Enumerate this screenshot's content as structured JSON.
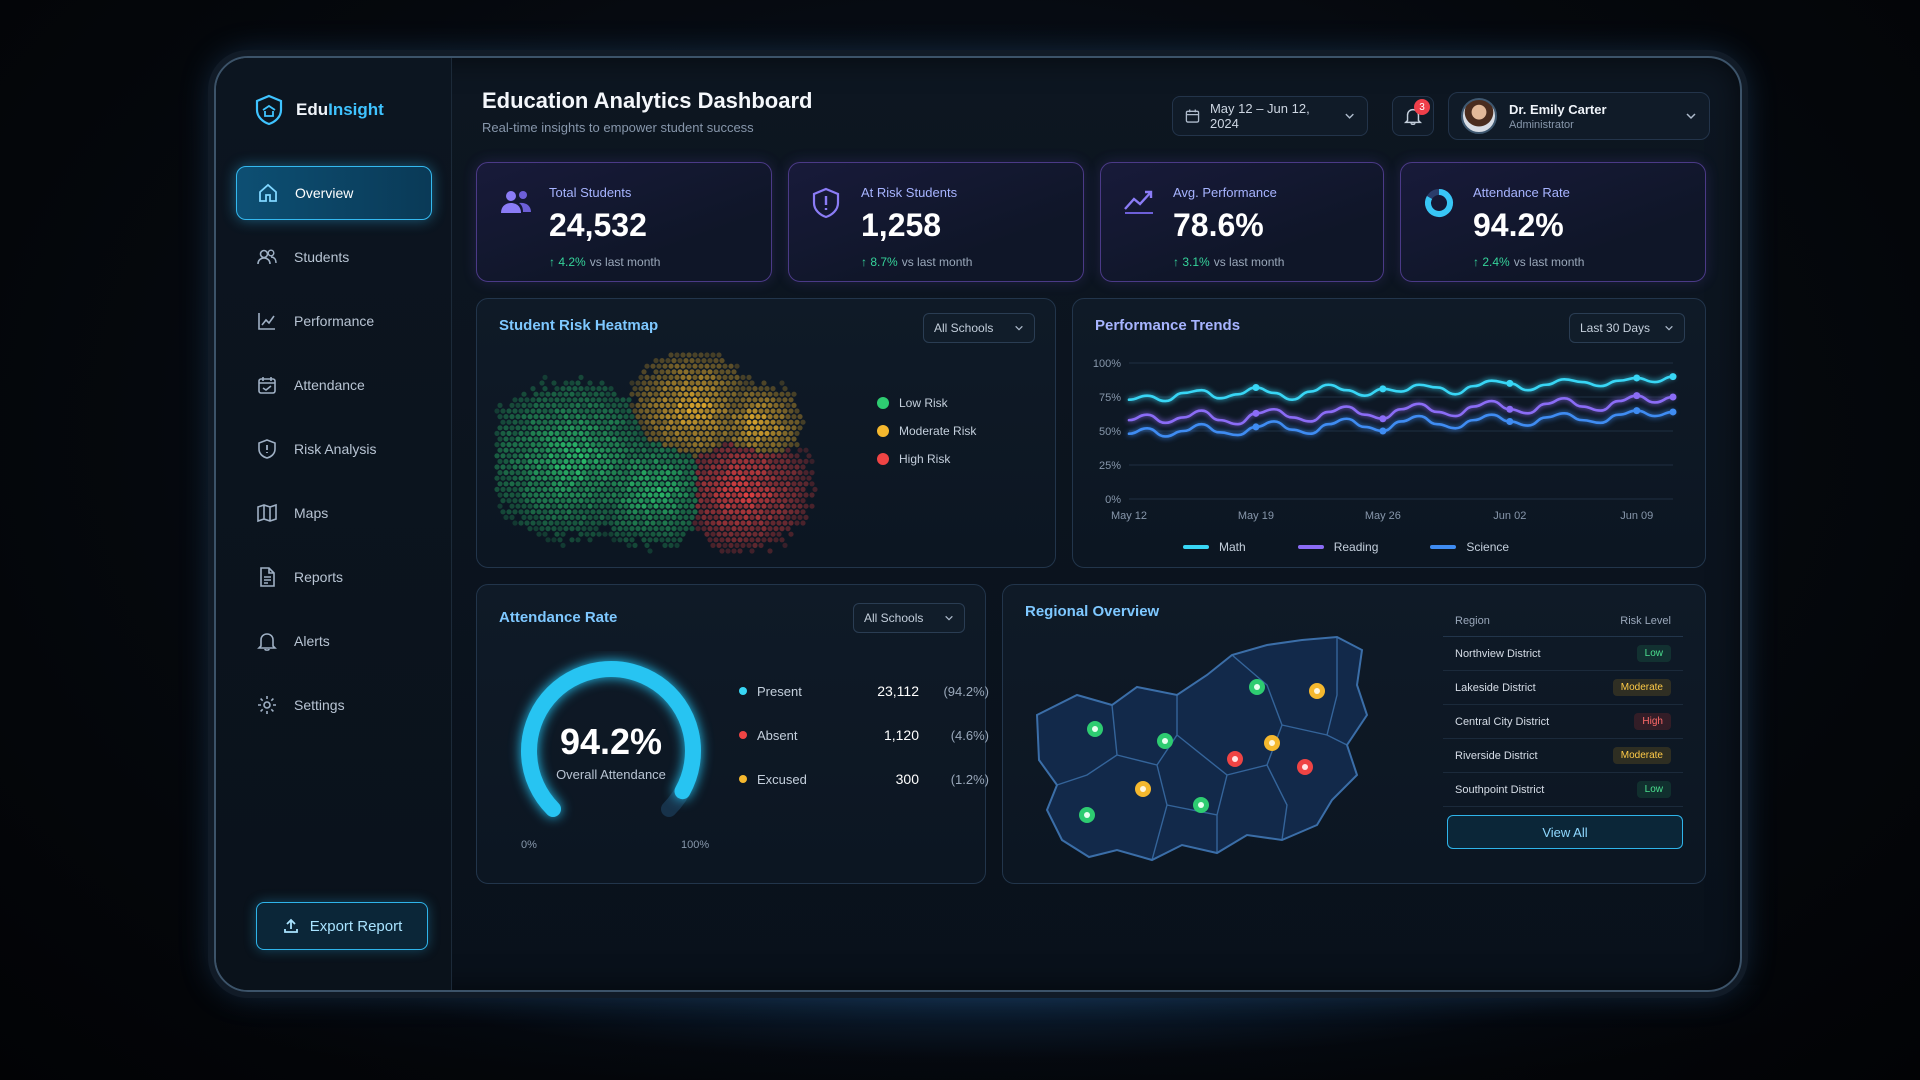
{
  "app": {
    "logo_prefix": "Edu",
    "logo_accent": "Insight"
  },
  "sidebar": {
    "items": [
      {
        "label": "Overview",
        "icon": "home-icon"
      },
      {
        "label": "Students",
        "icon": "users-icon"
      },
      {
        "label": "Performance",
        "icon": "chart-icon"
      },
      {
        "label": "Attendance",
        "icon": "calendar-check-icon"
      },
      {
        "label": "Risk Analysis",
        "icon": "shield-icon"
      },
      {
        "label": "Maps",
        "icon": "map-icon"
      },
      {
        "label": "Reports",
        "icon": "document-icon"
      },
      {
        "label": "Alerts",
        "icon": "bell-icon"
      },
      {
        "label": "Settings",
        "icon": "gear-icon"
      }
    ],
    "export_label": "Export Report"
  },
  "header": {
    "title": "Education Analytics Dashboard",
    "subtitle": "Real-time insights to empower student success",
    "date_range": "May 12 – Jun 12, 2024",
    "notification_count": "3",
    "user_name": "Dr. Emily Carter",
    "user_role": "Administrator"
  },
  "kpis": [
    {
      "label": "Total Students",
      "value": "24,532",
      "delta": "4.2%",
      "delta_text": "vs last month",
      "icon": "users-icon"
    },
    {
      "label": "At Risk Students",
      "value": "1,258",
      "delta": "8.7%",
      "delta_text": "vs last month",
      "icon": "shield-icon"
    },
    {
      "label": "Avg. Performance",
      "value": "78.6%",
      "delta": "3.1%",
      "delta_text": "vs last month",
      "icon": "trend-up-icon"
    },
    {
      "label": "Attendance Rate",
      "value": "94.2%",
      "delta": "2.4%",
      "delta_text": "vs last month",
      "icon": "donut-icon"
    }
  ],
  "heatmap": {
    "title": "Student Risk Heatmap",
    "filter": "All Schools",
    "legend": [
      {
        "label": "Low Risk",
        "color": "#2ecc71"
      },
      {
        "label": "Moderate Risk",
        "color": "#f5b82e"
      },
      {
        "label": "High Risk",
        "color": "#ef4444"
      }
    ]
  },
  "trends": {
    "title": "Performance Trends",
    "filter": "Last 30 Days",
    "legend": [
      {
        "label": "Math",
        "color": "#38d6f5"
      },
      {
        "label": "Reading",
        "color": "#8b6cf6"
      },
      {
        "label": "Science",
        "color": "#3f8cf2"
      }
    ]
  },
  "chart_data": {
    "type": "line",
    "title": "Performance Trends",
    "x": [
      "May 12",
      "",
      "",
      "",
      "",
      "",
      "",
      "May 19",
      "",
      "",
      "",
      "",
      "",
      "",
      "May 26",
      "",
      "",
      "",
      "",
      "",
      "",
      "Jun 02",
      "",
      "",
      "",
      "",
      "",
      "",
      "Jun 09",
      "",
      ""
    ],
    "x_ticks": [
      "May 12",
      "May 19",
      "May 26",
      "Jun 02",
      "Jun 09"
    ],
    "y_ticks": [
      "0%",
      "25%",
      "50%",
      "75%",
      "100%"
    ],
    "ylim": [
      0,
      100
    ],
    "grid": true,
    "legend_position": "bottom",
    "series": [
      {
        "name": "Math",
        "values": [
          73,
          76,
          72,
          78,
          80,
          74,
          77,
          82,
          78,
          73,
          79,
          84,
          80,
          76,
          81,
          79,
          84,
          82,
          77,
          83,
          87,
          85,
          80,
          84,
          88,
          86,
          83,
          87,
          89,
          86,
          90
        ]
      },
      {
        "name": "Reading",
        "values": [
          58,
          62,
          56,
          60,
          65,
          58,
          55,
          63,
          66,
          60,
          57,
          64,
          68,
          62,
          59,
          66,
          70,
          64,
          61,
          68,
          72,
          66,
          63,
          70,
          74,
          68,
          65,
          72,
          76,
          71,
          75
        ]
      },
      {
        "name": "Science",
        "values": [
          48,
          52,
          46,
          50,
          55,
          49,
          47,
          53,
          57,
          51,
          48,
          55,
          59,
          53,
          50,
          57,
          61,
          55,
          52,
          58,
          62,
          57,
          54,
          60,
          63,
          58,
          56,
          62,
          65,
          61,
          64
        ]
      }
    ]
  },
  "attendance": {
    "title": "Attendance Rate",
    "filter": "All Schools",
    "gauge_value": "94.2%",
    "gauge_label": "Overall Attendance",
    "gauge_fraction": 0.942,
    "gauge_min": "0%",
    "gauge_max": "100%",
    "rows": [
      {
        "label": "Present",
        "value": "23,112",
        "pct": "(94.2%)",
        "color": "#38d6f5"
      },
      {
        "label": "Absent",
        "value": "1,120",
        "pct": "(4.6%)",
        "color": "#ef4444"
      },
      {
        "label": "Excused",
        "value": "300",
        "pct": "(1.2%)",
        "color": "#f5b82e"
      }
    ]
  },
  "regional": {
    "title": "Regional Overview",
    "col_region": "Region",
    "col_risk": "Risk Level",
    "rows": [
      {
        "region": "Northview District",
        "risk": "Low"
      },
      {
        "region": "Lakeside District",
        "risk": "Moderate"
      },
      {
        "region": "Central City District",
        "risk": "High"
      },
      {
        "region": "Riverside District",
        "risk": "Moderate"
      },
      {
        "region": "Southpoint District",
        "risk": "Low"
      }
    ],
    "view_all": "View All"
  }
}
